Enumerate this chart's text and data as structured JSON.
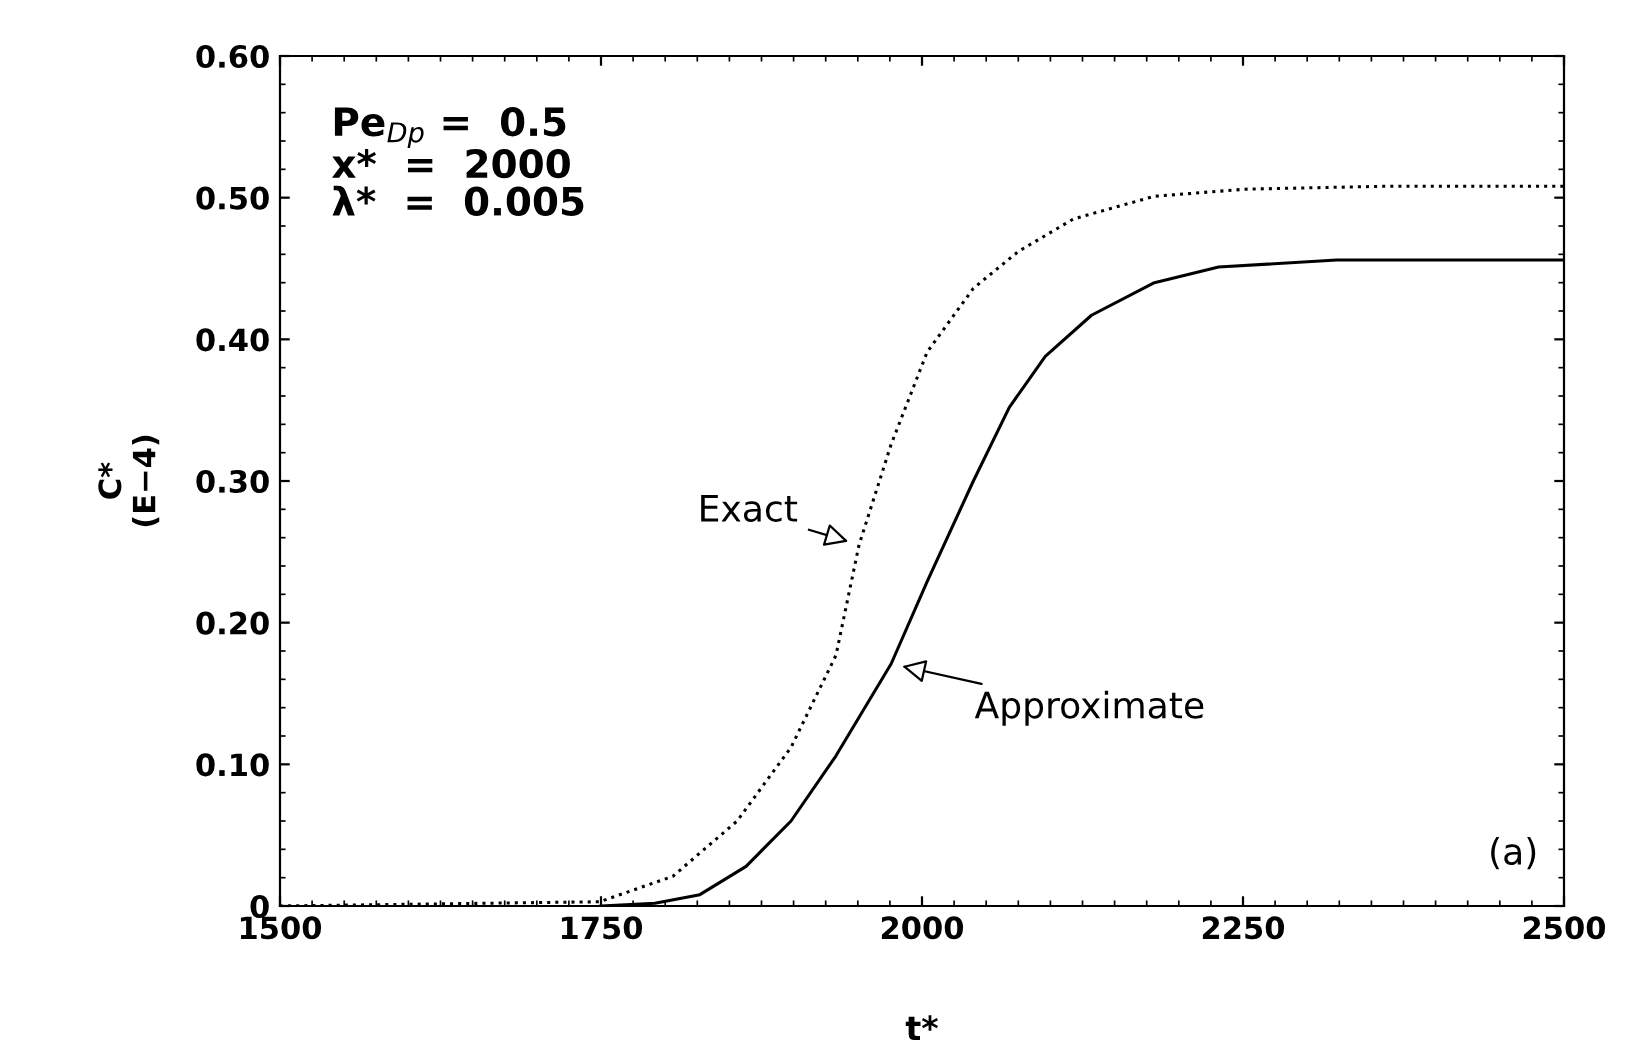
{
  "chart_data": {
    "type": "line",
    "xlabel": "t*",
    "ylabel": "C*\n(E−4)",
    "xlim": [
      1500,
      2500
    ],
    "xticks": [
      1500,
      1750,
      2000,
      2250,
      2500
    ],
    "ylim": [
      0,
      0.6
    ],
    "yticks": [
      {
        "value": 0,
        "label": "0"
      },
      {
        "value": 0.1,
        "label": "0.10"
      },
      {
        "value": 0.2,
        "label": "0.20"
      },
      {
        "value": 0.3,
        "label": "0.30"
      },
      {
        "value": 0.4,
        "label": "0.40"
      },
      {
        "value": 0.5,
        "label": "0.50"
      },
      {
        "value": 0.6,
        "label": "0.60"
      }
    ],
    "grid": false,
    "marker": "none",
    "series": [
      {
        "name": "Exact",
        "color": "#000000",
        "line_style": "dotted",
        "x": [
          1500,
          1749,
          1806,
          1856,
          1898,
          1933,
          1951,
          1976,
          2004,
          2040,
          2075,
          2118,
          2181,
          2252,
          2358,
          2500
        ],
        "values": [
          0,
          0.003,
          0.021,
          0.06,
          0.112,
          0.177,
          0.255,
          0.326,
          0.391,
          0.436,
          0.462,
          0.485,
          0.501,
          0.506,
          0.508,
          0.508
        ]
      },
      {
        "name": "Approximate",
        "color": "#000000",
        "line_style": "solid",
        "x": [
          1750,
          1792,
          1827,
          1863,
          1898,
          1933,
          1976,
          2004,
          2040,
          2068,
          2096,
          2132,
          2181,
          2231,
          2323,
          2500
        ],
        "values": [
          0,
          0.002,
          0.008,
          0.028,
          0.06,
          0.106,
          0.171,
          0.229,
          0.3,
          0.352,
          0.388,
          0.417,
          0.44,
          0.451,
          0.456,
          0.456
        ]
      }
    ],
    "annotations": [
      "Pe$_{Dp}$ =  0.5\nx*  =  2000\nλ*  =  0.005",
      "(a)"
    ]
  }
}
